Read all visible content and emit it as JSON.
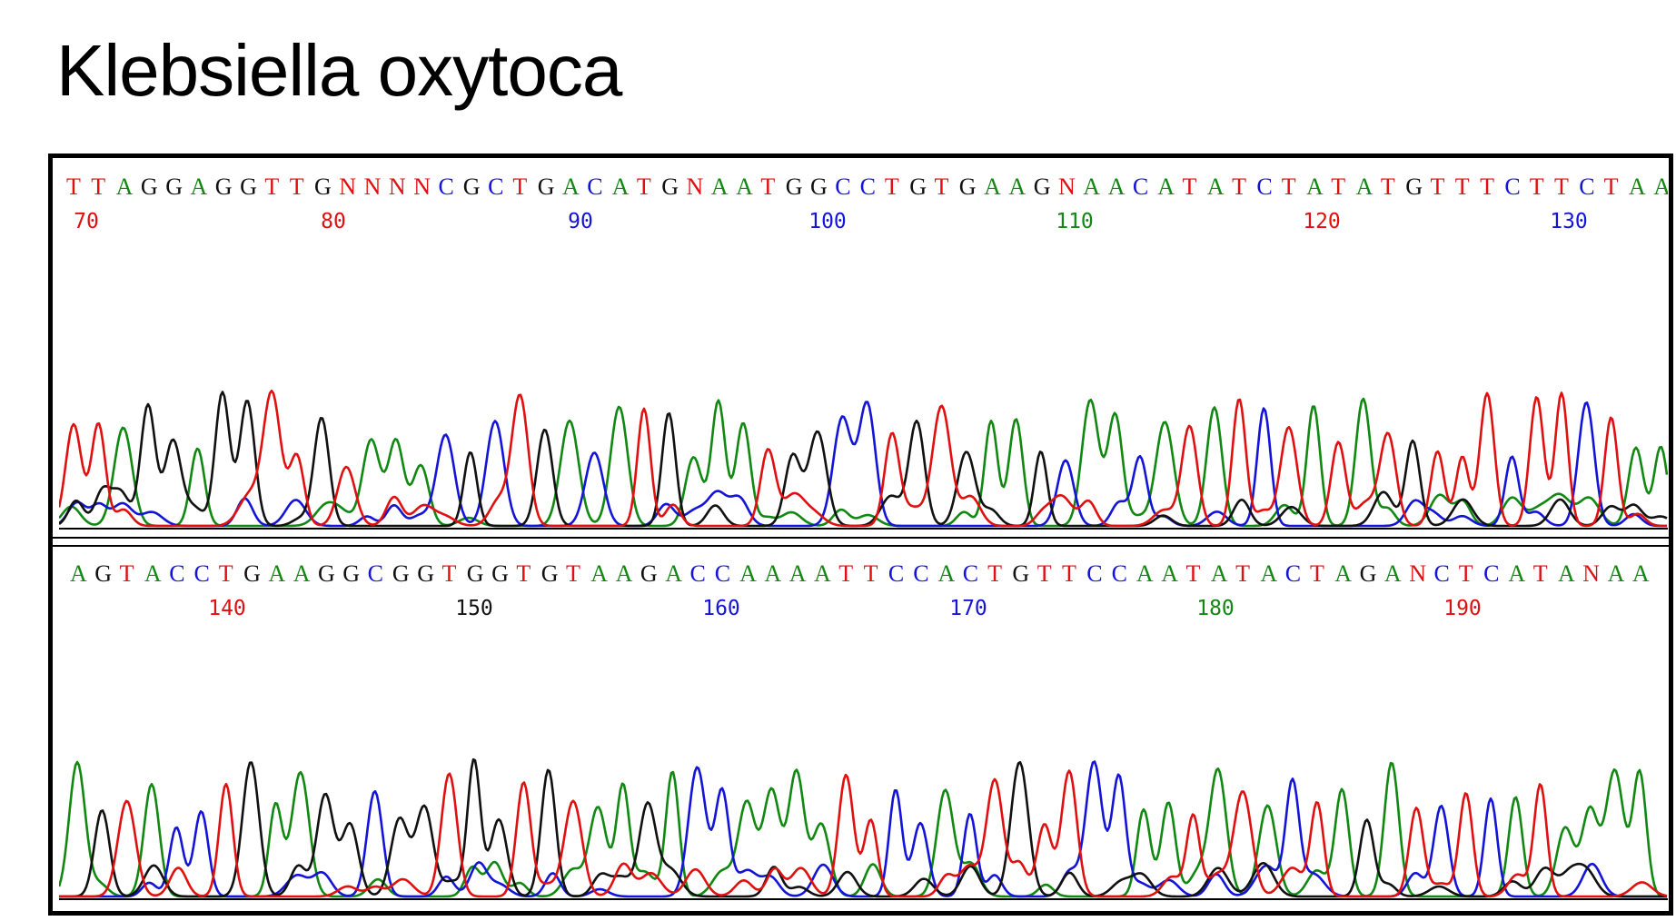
{
  "title": "Klebsiella oxytoca",
  "colors": {
    "A": "#118811",
    "C": "#1414d8",
    "G": "#111111",
    "T": "#e01010",
    "N": "#e01010"
  },
  "chromatogram": {
    "rows": [
      {
        "sequence": "TTAGGAGGTTGNNNNCGCTGACATGNAATGGCCTGTGAAGNAACATATCTATATGTTTCTTCTAA",
        "positions": [
          {
            "label": "70",
            "color": "T"
          },
          {
            "label": "80",
            "color": "T"
          },
          {
            "label": "90",
            "color": "C"
          },
          {
            "label": "100",
            "color": "C"
          },
          {
            "label": "110",
            "color": "A"
          },
          {
            "label": "120",
            "color": "T"
          },
          {
            "label": "130",
            "color": "C"
          }
        ]
      },
      {
        "sequence": "AGTACCTGAAGGCGGTGGTGTAAGACCAAAATTCCACTGTTCCAATATACTAGANCTCATANAA",
        "positions": [
          {
            "label": "140",
            "color": "T"
          },
          {
            "label": "150",
            "color": "G"
          },
          {
            "label": "160",
            "color": "C"
          },
          {
            "label": "170",
            "color": "C"
          },
          {
            "label": "180",
            "color": "A"
          },
          {
            "label": "190",
            "color": "T"
          }
        ]
      }
    ]
  }
}
